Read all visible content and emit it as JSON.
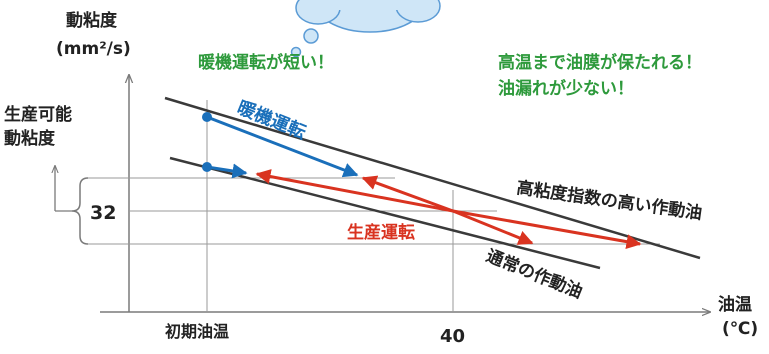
{
  "axes": {
    "y_title_line1": "動粘度",
    "y_title_line2": "(mm²/s)",
    "x_title_line1": "油温",
    "x_title_line2": "(℃)",
    "y_tick_32": "32",
    "x_tick_initial": "初期油温",
    "x_tick_40": "40",
    "range_label_line1": "生産可能",
    "range_label_line2": "動粘度"
  },
  "annotations": {
    "warmup_short": "暖機運転が短い！",
    "oil_film_line1": "高温まで油膜が保たれる！",
    "oil_film_line2": "油漏れが少ない！"
  },
  "lines": {
    "high_vi_label": "高粘度指数の高い作動油",
    "normal_label": "通常の作動油",
    "warmup_label": "暖機運転",
    "production_label": "生産運転"
  },
  "colors": {
    "green": "#2e9a3c",
    "blue": "#1a6fba",
    "red": "#d93320",
    "dark": "#3a3a3a",
    "grid": "#7a7a7a",
    "cloud_fill": "#cfe6f7",
    "cloud_stroke": "#5b9bd5"
  }
}
